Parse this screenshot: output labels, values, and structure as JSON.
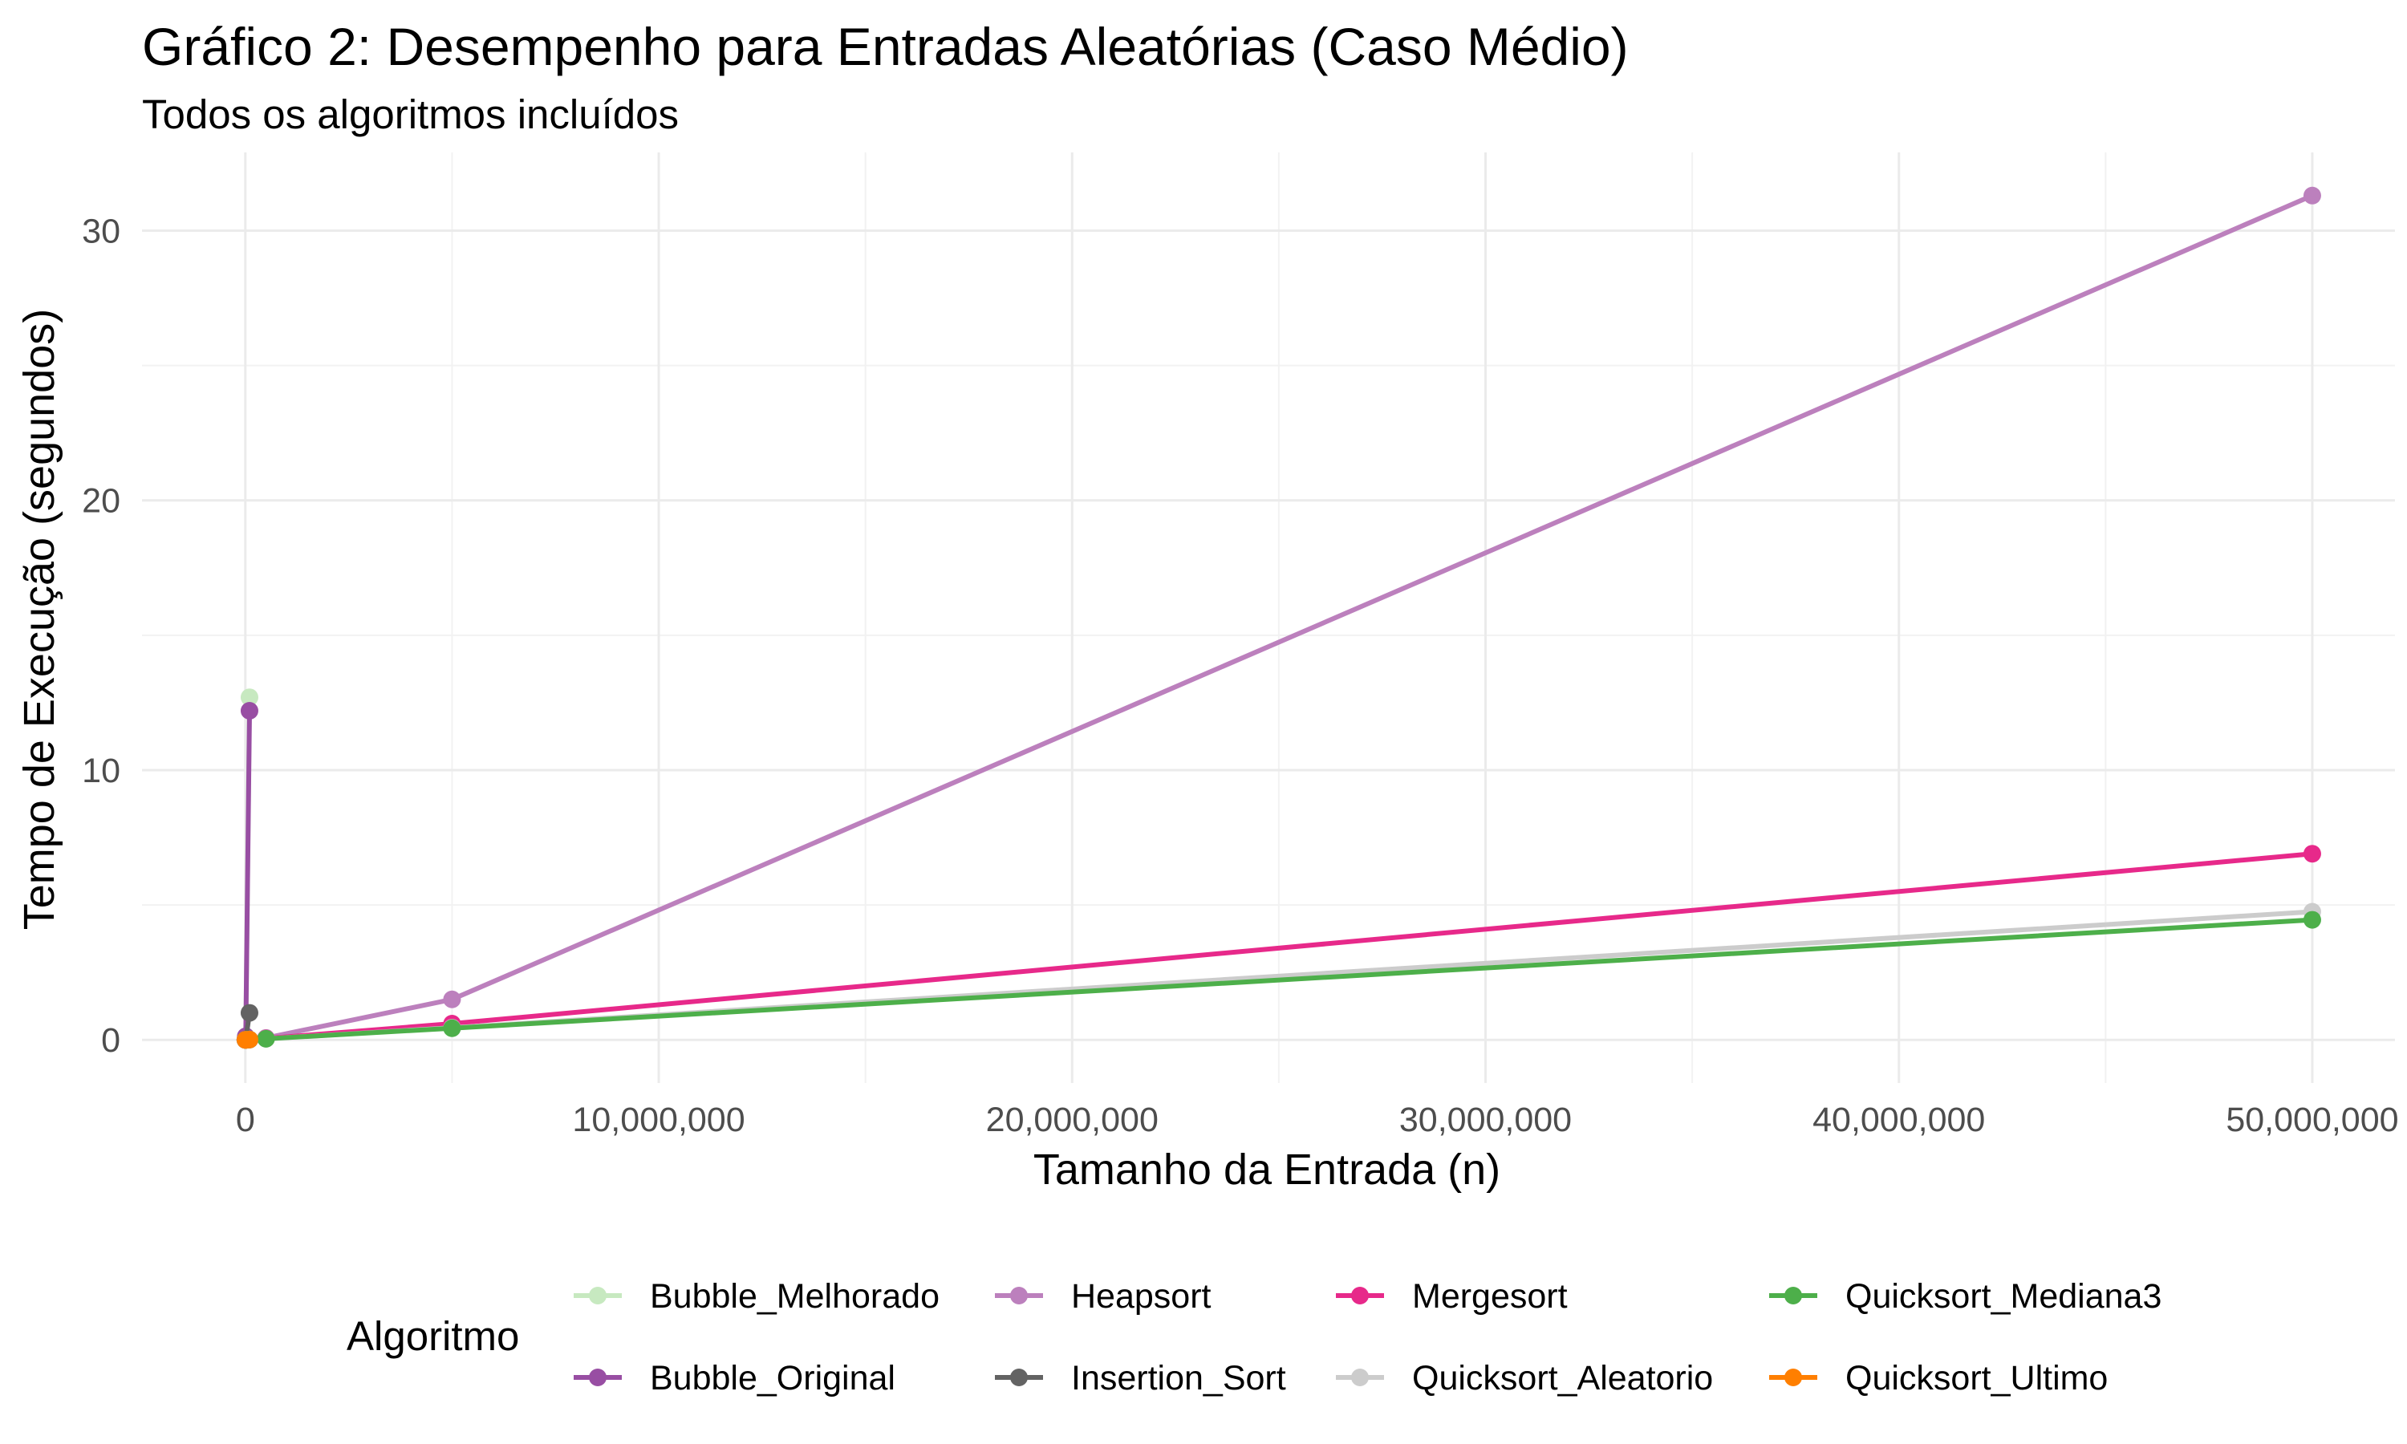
{
  "chart_data": {
    "type": "line",
    "title": "Gráfico 2: Desempenho para Entradas Aleatórias (Caso Médio)",
    "subtitle": "Todos os algoritmos incluídos",
    "xlabel": "Tamanho da Entrada (n)",
    "ylabel": "Tempo de Execução (segundos)",
    "xlim": [
      -2500000,
      52000000
    ],
    "ylim": [
      -1.6,
      32.9
    ],
    "x_ticks": [
      0,
      10000000,
      20000000,
      30000000,
      40000000,
      50000000
    ],
    "x_tick_labels": [
      "0",
      "10,000,000",
      "20,000,000",
      "30,000,000",
      "40,000,000",
      "50,000,000"
    ],
    "y_ticks": [
      0,
      10,
      20,
      30
    ],
    "y_tick_labels": [
      "0",
      "10",
      "20",
      "30"
    ],
    "grid": true,
    "legend_title": "Algoritmo",
    "legend_position": "bottom",
    "series": [
      {
        "name": "Bubble_Melhorado",
        "color": "#c7e9c0",
        "x": [
          1000,
          10000,
          100000
        ],
        "y": [
          0.0,
          0.12,
          12.7
        ]
      },
      {
        "name": "Bubble_Original",
        "color": "#984ea3",
        "x": [
          1000,
          10000,
          100000
        ],
        "y": [
          0.0,
          0.13,
          12.2
        ]
      },
      {
        "name": "Heapsort",
        "color": "#bc80bd",
        "x": [
          1000,
          10000,
          100000,
          500000,
          5000000,
          50000000
        ],
        "y": [
          0.0,
          0.0,
          0.01,
          0.07,
          1.5,
          31.3
        ]
      },
      {
        "name": "Insertion_Sort",
        "color": "#636363",
        "x": [
          1000,
          10000,
          100000
        ],
        "y": [
          0.0,
          0.01,
          1.0
        ]
      },
      {
        "name": "Mergesort",
        "color": "#e7298a",
        "x": [
          1000,
          10000,
          100000,
          500000,
          5000000,
          50000000
        ],
        "y": [
          0.0,
          0.0,
          0.01,
          0.05,
          0.6,
          6.9
        ]
      },
      {
        "name": "Quicksort_Aleatorio",
        "color": "#cccccc",
        "x": [
          1000,
          10000,
          100000,
          500000,
          5000000,
          50000000
        ],
        "y": [
          0.0,
          0.0,
          0.01,
          0.04,
          0.45,
          4.75
        ]
      },
      {
        "name": "Quicksort_Mediana3",
        "color": "#4daf4a",
        "x": [
          1000,
          10000,
          100000,
          500000,
          5000000,
          50000000
        ],
        "y": [
          0.0,
          0.0,
          0.01,
          0.04,
          0.43,
          4.45
        ]
      },
      {
        "name": "Quicksort_Ultimo",
        "color": "#ff7f00",
        "x": [
          1000,
          10000,
          100000
        ],
        "y": [
          0.0,
          0.0,
          0.01
        ]
      }
    ],
    "legend_order": [
      "Bubble_Melhorado",
      "Heapsort",
      "Mergesort",
      "Quicksort_Mediana3",
      "Bubble_Original",
      "Insertion_Sort",
      "Quicksort_Aleatorio",
      "Quicksort_Ultimo"
    ],
    "draw_order": [
      "Bubble_Melhorado",
      "Bubble_Original",
      "Insertion_Sort",
      "Heapsort",
      "Mergesort",
      "Quicksort_Aleatorio",
      "Quicksort_Mediana3",
      "Quicksort_Ultimo"
    ]
  }
}
